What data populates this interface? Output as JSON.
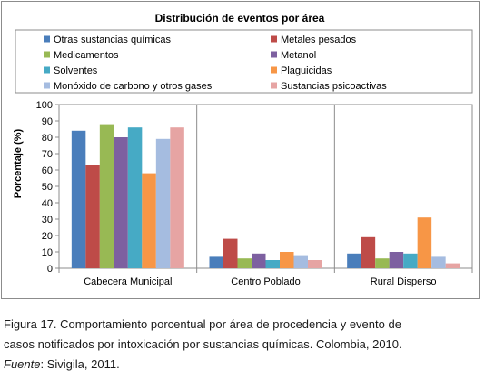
{
  "chart_data": {
    "type": "bar",
    "title": "Distribución de eventos por área",
    "ylabel": "Porcentaje (%)",
    "xlabel": "",
    "ylim": [
      0,
      100
    ],
    "yticks": [
      0,
      10,
      20,
      30,
      40,
      50,
      60,
      70,
      80,
      90,
      100
    ],
    "grid": false,
    "legend_placement": "top",
    "categories": [
      "Cabecera Municipal",
      "Centro Poblado",
      "Rural Disperso"
    ],
    "series": [
      {
        "name": "Otras sustancias químicas",
        "color": "#4a7ebb",
        "values": [
          84,
          7,
          9
        ]
      },
      {
        "name": "Metales pesados",
        "color": "#be4b48",
        "values": [
          63,
          18,
          19
        ]
      },
      {
        "name": "Medicamentos",
        "color": "#98b954",
        "values": [
          88,
          6,
          6
        ]
      },
      {
        "name": "Metanol",
        "color": "#7d60a0",
        "values": [
          80,
          9,
          10
        ]
      },
      {
        "name": "Solventes",
        "color": "#46aac5",
        "values": [
          86,
          5,
          9
        ]
      },
      {
        "name": "Plaguicidas",
        "color": "#f79646",
        "values": [
          58,
          10,
          31
        ]
      },
      {
        "name": "Monóxido de carbono y otros gases",
        "color": "#a5bce0",
        "values": [
          79,
          8,
          7
        ]
      },
      {
        "name": "Sustancias psicoactivas",
        "color": "#e6a4a3",
        "values": [
          86,
          5,
          3
        ]
      }
    ]
  },
  "caption": {
    "line1": "Figura 17. Comportamiento  porcentual por área  de procedencia y evento de",
    "line2": "casos notificados por intoxicación  por sustancias  químicas.  Colombia,  2010.",
    "source_label": "Fuente",
    "source_text": ": Sivigila,  2011."
  }
}
